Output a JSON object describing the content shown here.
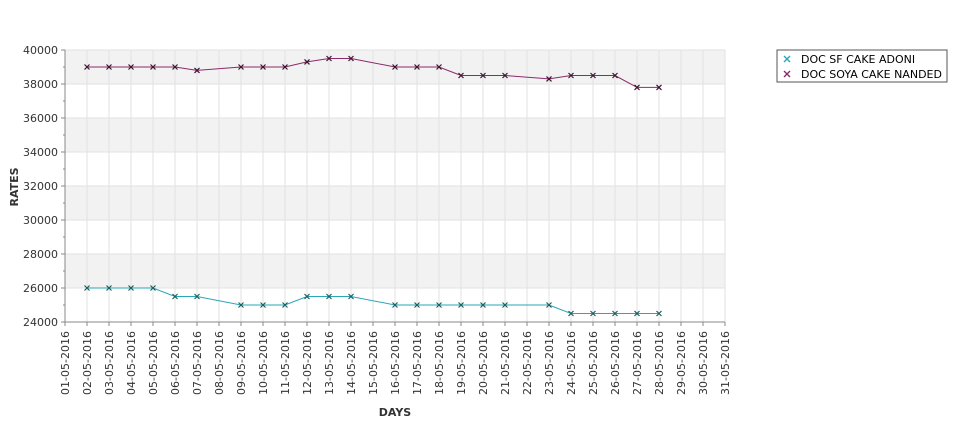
{
  "chart_data": {
    "type": "line",
    "xlabel": "DAYS",
    "ylabel": "RATES",
    "ylim": [
      24000,
      40000
    ],
    "yticks": [
      24000,
      26000,
      28000,
      30000,
      32000,
      34000,
      36000,
      38000,
      40000
    ],
    "grid": true,
    "legend": "top-right",
    "categories": [
      "01-05-2016",
      "02-05-2016",
      "03-05-2016",
      "04-05-2016",
      "05-05-2016",
      "06-05-2016",
      "07-05-2016",
      "08-05-2016",
      "09-05-2016",
      "10-05-2016",
      "11-05-2016",
      "12-05-2016",
      "13-05-2016",
      "14-05-2016",
      "15-05-2016",
      "16-05-2016",
      "17-05-2016",
      "18-05-2016",
      "19-05-2016",
      "20-05-2016",
      "21-05-2016",
      "22-05-2016",
      "23-05-2016",
      "24-05-2016",
      "25-05-2016",
      "26-05-2016",
      "27-05-2016",
      "28-05-2016",
      "29-05-2016",
      "30-05-2016",
      "31-05-2016"
    ],
    "series": [
      {
        "name": "DOC SF CAKE ADONI",
        "color": "#2aa6b8",
        "marker_color": "#1f5e5e",
        "points": [
          {
            "x": "02-05-2016",
            "y": 26000
          },
          {
            "x": "03-05-2016",
            "y": 26000
          },
          {
            "x": "04-05-2016",
            "y": 26000
          },
          {
            "x": "05-05-2016",
            "y": 26000
          },
          {
            "x": "06-05-2016",
            "y": 25500
          },
          {
            "x": "07-05-2016",
            "y": 25500
          },
          {
            "x": "09-05-2016",
            "y": 25000
          },
          {
            "x": "10-05-2016",
            "y": 25000
          },
          {
            "x": "11-05-2016",
            "y": 25000
          },
          {
            "x": "12-05-2016",
            "y": 25500
          },
          {
            "x": "13-05-2016",
            "y": 25500
          },
          {
            "x": "14-05-2016",
            "y": 25500
          },
          {
            "x": "16-05-2016",
            "y": 25000
          },
          {
            "x": "17-05-2016",
            "y": 25000
          },
          {
            "x": "18-05-2016",
            "y": 25000
          },
          {
            "x": "19-05-2016",
            "y": 25000
          },
          {
            "x": "20-05-2016",
            "y": 25000
          },
          {
            "x": "21-05-2016",
            "y": 25000
          },
          {
            "x": "23-05-2016",
            "y": 25000
          },
          {
            "x": "24-05-2016",
            "y": 24500
          },
          {
            "x": "25-05-2016",
            "y": 24500
          },
          {
            "x": "26-05-2016",
            "y": 24500
          },
          {
            "x": "27-05-2016",
            "y": 24500
          },
          {
            "x": "28-05-2016",
            "y": 24500
          }
        ]
      },
      {
        "name": "DOC SOYA CAKE NANDED",
        "color": "#8b2a6b",
        "marker_color": "#3a1530",
        "points": [
          {
            "x": "02-05-2016",
            "y": 39000
          },
          {
            "x": "03-05-2016",
            "y": 39000
          },
          {
            "x": "04-05-2016",
            "y": 39000
          },
          {
            "x": "05-05-2016",
            "y": 39000
          },
          {
            "x": "06-05-2016",
            "y": 39000
          },
          {
            "x": "07-05-2016",
            "y": 38800
          },
          {
            "x": "09-05-2016",
            "y": 39000
          },
          {
            "x": "10-05-2016",
            "y": 39000
          },
          {
            "x": "11-05-2016",
            "y": 39000
          },
          {
            "x": "12-05-2016",
            "y": 39300
          },
          {
            "x": "13-05-2016",
            "y": 39500
          },
          {
            "x": "14-05-2016",
            "y": 39500
          },
          {
            "x": "16-05-2016",
            "y": 39000
          },
          {
            "x": "17-05-2016",
            "y": 39000
          },
          {
            "x": "18-05-2016",
            "y": 39000
          },
          {
            "x": "19-05-2016",
            "y": 38500
          },
          {
            "x": "20-05-2016",
            "y": 38500
          },
          {
            "x": "21-05-2016",
            "y": 38500
          },
          {
            "x": "23-05-2016",
            "y": 38300
          },
          {
            "x": "24-05-2016",
            "y": 38500
          },
          {
            "x": "25-05-2016",
            "y": 38500
          },
          {
            "x": "26-05-2016",
            "y": 38500
          },
          {
            "x": "27-05-2016",
            "y": 37800
          },
          {
            "x": "28-05-2016",
            "y": 37800
          }
        ]
      }
    ]
  }
}
